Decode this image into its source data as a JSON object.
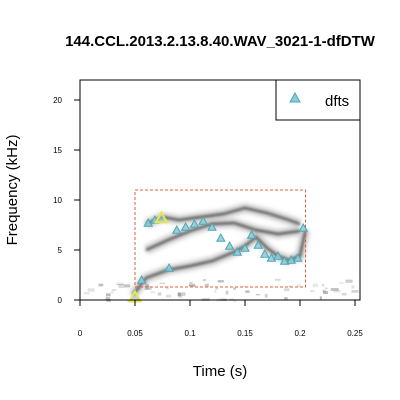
{
  "chart_data": {
    "type": "scatter",
    "title": "144.CCL.2013.2.13.8.40.WAV_3021-1-dfDTW",
    "xlabel": "Time (s)",
    "ylabel": "Frequency (kHz)",
    "xlim": [
      0,
      0.25
    ],
    "ylim": [
      0,
      22
    ],
    "x_ticks": [
      0,
      0.05,
      0.1,
      0.15,
      0.2,
      0.25
    ],
    "x_tick_labels": [
      "0",
      "0.05",
      "0.1",
      "0.15",
      "0.2",
      "0.25"
    ],
    "y_ticks": [
      0,
      5,
      10,
      15,
      20
    ],
    "y_tick_labels": [
      "0",
      "5",
      "10",
      "15",
      "20"
    ],
    "grid": false,
    "legend": {
      "position": "top-right",
      "entries": [
        "dfts"
      ]
    },
    "colors": {
      "marker_fill": "#8ec9d8",
      "marker_stroke": "#4aa7b4",
      "highlight_stroke": "#e7e84a",
      "selection_box": "#e0603c",
      "spectrogram": "#555555"
    },
    "selection_box": {
      "x": [
        0.05,
        0.205
      ],
      "y": [
        1.3,
        11.0
      ]
    },
    "series": [
      {
        "name": "dfts",
        "x": [
          0.05,
          0.056,
          0.062,
          0.068,
          0.074,
          0.081,
          0.088,
          0.096,
          0.104,
          0.112,
          0.12,
          0.128,
          0.136,
          0.143,
          0.15,
          0.156,
          0.162,
          0.168,
          0.174,
          0.18,
          0.186,
          0.192,
          0.198,
          0.203
        ],
        "y": [
          0.3,
          2.0,
          7.7,
          8.0,
          8.2,
          3.2,
          7.0,
          7.3,
          7.6,
          7.9,
          7.3,
          6.2,
          5.4,
          4.8,
          5.2,
          6.5,
          5.5,
          4.6,
          4.2,
          4.4,
          3.9,
          4.0,
          4.2,
          7.2
        ]
      }
    ]
  }
}
